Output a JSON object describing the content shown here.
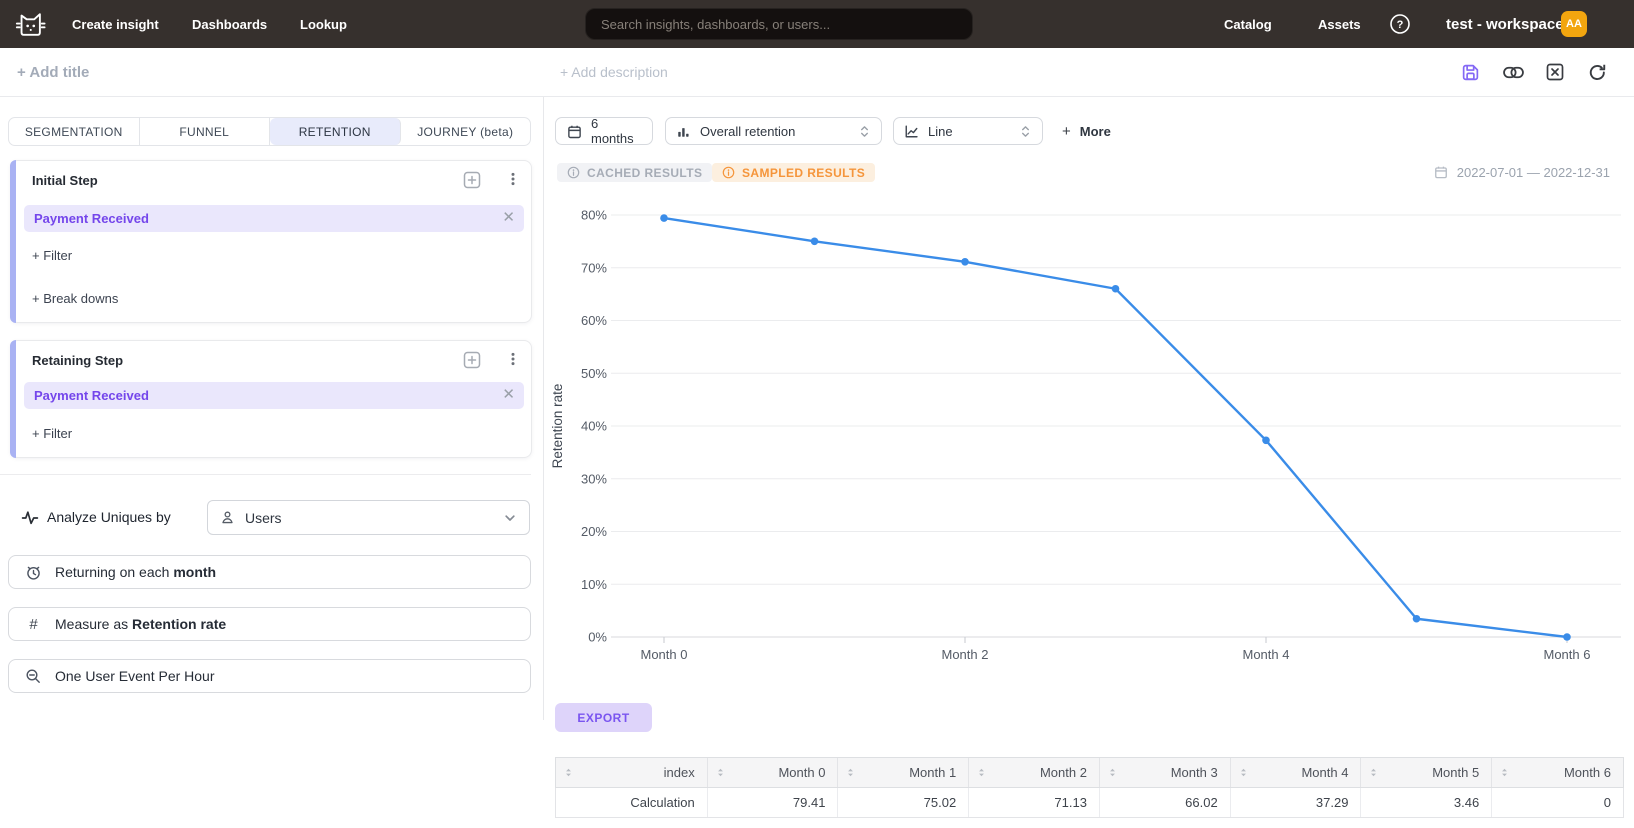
{
  "navbar": {
    "nav_items": [
      "Create insight",
      "Dashboards",
      "Lookup"
    ],
    "search_placeholder": "Search insights, dashboards, or users...",
    "right_items": [
      "Catalog",
      "Assets"
    ],
    "workspace": "test - workspace",
    "avatar_initials": "AA"
  },
  "titlebar": {
    "add_title": "+ Add title",
    "add_description": "+ Add description"
  },
  "sidebar": {
    "tabs": [
      {
        "label": "SEGMENTATION",
        "active": false
      },
      {
        "label": "FUNNEL",
        "active": false
      },
      {
        "label": "RETENTION",
        "active": true
      },
      {
        "label": "JOURNEY (beta)",
        "active": false
      }
    ],
    "initial_step": {
      "title": "Initial Step",
      "event": "Payment Received",
      "actions": [
        "+ Filter",
        "+ Break downs"
      ]
    },
    "retaining_step": {
      "title": "Retaining Step",
      "event": "Payment Received",
      "actions": [
        "+ Filter"
      ]
    },
    "analyze_label": "Analyze Uniques by",
    "analyze_value": "Users",
    "returning_prefix": "Returning on each ",
    "returning_value": "month",
    "measure_prefix": "Measure as ",
    "measure_value": "Retention rate",
    "dedupe_label": "One User Event Per Hour"
  },
  "toolbar": {
    "time_window": "6 months",
    "retention_type": "Overall retention",
    "chart_type": "Line",
    "more_plus": "+",
    "more_label": "More"
  },
  "status": {
    "cached_badge": "CACHED RESULTS",
    "sampled_badge": "SAMPLED RESULTS",
    "date_range": "2022-07-01 — 2022-12-31"
  },
  "chart_data": {
    "type": "line",
    "x": [
      "Month 0",
      "Month 1",
      "Month 2",
      "Month 3",
      "Month 4",
      "Month 5",
      "Month 6"
    ],
    "series": [
      {
        "name": "Calculation",
        "values": [
          79.41,
          75.02,
          71.13,
          66.02,
          37.29,
          3.46,
          0
        ]
      }
    ],
    "title": "",
    "xlabel": "",
    "ylabel": "Retention rate",
    "ylim": [
      0,
      80
    ],
    "ytick_step": 10,
    "ytick_suffix": "%",
    "x_ticks_shown": [
      "Month 0",
      "Month 2",
      "Month 4",
      "Month 6"
    ],
    "grid": true,
    "legend": "none",
    "line_color": "#3a8ce8"
  },
  "export_label": "EXPORT",
  "table": {
    "columns": [
      "index",
      "Month 0",
      "Month 1",
      "Month 2",
      "Month 3",
      "Month 4",
      "Month 5",
      "Month 6"
    ],
    "rows": [
      {
        "index": "Calculation",
        "values": [
          "79.41",
          "75.02",
          "71.13",
          "66.02",
          "37.29",
          "3.46",
          "0"
        ]
      }
    ]
  },
  "colors": {
    "accent_purple": "#7446eb",
    "chip_bg": "#eae7fc",
    "line_blue": "#3a8ce8",
    "avatar_amber": "#f2a50f",
    "sampled_orange": "#f5953b",
    "navbar_dark": "#36302d"
  }
}
